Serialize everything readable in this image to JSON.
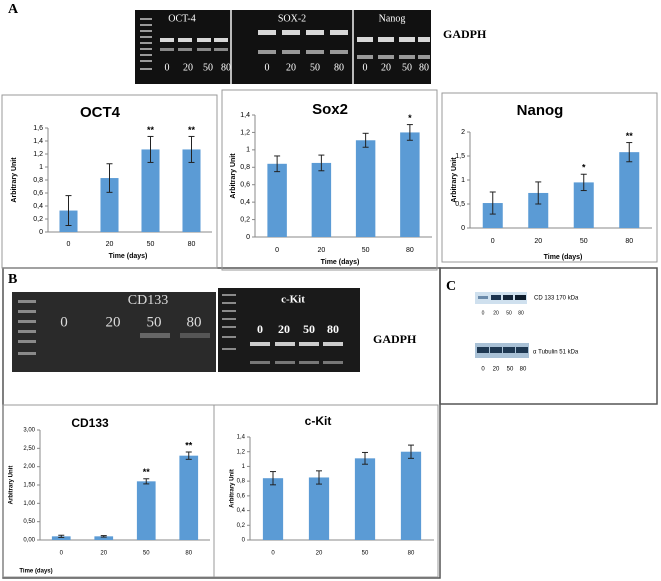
{
  "panels": {
    "a": "A",
    "b": "B",
    "c": "C"
  },
  "gel_a": {
    "labels": [
      "OCT-4",
      "SOX-2",
      "Nanog"
    ],
    "control": "GADPH",
    "lanes": [
      "0",
      "20",
      "50",
      "80",
      "0",
      "20",
      "50",
      "80",
      "0",
      "20",
      "50",
      "80"
    ]
  },
  "gel_b": {
    "labels": [
      "CD133",
      "c-Kit"
    ],
    "control": "GADPH",
    "lanes": [
      "0",
      "20",
      "50",
      "80",
      "0",
      "20",
      "50",
      "80"
    ]
  },
  "western": {
    "bands": [
      "CD 133 170 kDa",
      "α Tubulin 51 kDa"
    ],
    "lanes": [
      "0",
      "20",
      "50",
      "80",
      "0",
      "20",
      "50",
      "80"
    ]
  },
  "chart_data": [
    {
      "type": "bar",
      "title": "OCT4",
      "y_label": "Arbitrary Unit",
      "x_label": "Time (days)",
      "color": "#5b9bd5",
      "categories": [
        "0",
        "20",
        "50",
        "80"
      ],
      "values": [
        0.33,
        0.83,
        1.27,
        1.27
      ],
      "errors": [
        0.23,
        0.22,
        0.2,
        0.2
      ],
      "annotations": [
        {
          "x": "50",
          "text": "**"
        },
        {
          "x": "80",
          "text": "**"
        }
      ],
      "ylim": [
        0,
        1.6
      ],
      "grid": false,
      "yticks": [
        0,
        {
          "value": 0.2,
          "label": "0,2"
        },
        {
          "value": 0.4,
          "label": "0,4"
        },
        {
          "value": 0.6,
          "label": "0,6"
        },
        {
          "value": 0.8,
          "label": "0,8"
        },
        1,
        {
          "value": 1.2,
          "label": "1,2"
        },
        {
          "value": 1.4,
          "label": "1,4"
        },
        {
          "value": 1.6,
          "label": "1,6"
        }
      ]
    },
    {
      "type": "bar",
      "title": "Sox2",
      "y_label": "Arbitrary Unit",
      "x_label": "Time (days)",
      "color": "#5b9bd5",
      "categories": [
        "0",
        "20",
        "50",
        "80"
      ],
      "values": [
        0.84,
        0.85,
        1.11,
        1.2
      ],
      "errors": [
        0.09,
        0.09,
        0.08,
        0.09
      ],
      "annotations": [
        {
          "x": "80",
          "text": "*"
        }
      ],
      "ylim": [
        0,
        1.4
      ],
      "grid": false,
      "yticks": [
        0,
        {
          "value": 0.2,
          "label": "0,2"
        },
        {
          "value": 0.4,
          "label": "0,4"
        },
        {
          "value": 0.6,
          "label": "0,6"
        },
        {
          "value": 0.8,
          "label": "0,8"
        },
        1,
        {
          "value": 1.2,
          "label": "1,2"
        },
        {
          "value": 1.4,
          "label": "1,4"
        }
      ]
    },
    {
      "type": "bar",
      "title": "Nanog",
      "y_label": "Arbitrary Unit",
      "x_label": "Time (days)",
      "color": "#5b9bd5",
      "categories": [
        "0",
        "20",
        "50",
        "80"
      ],
      "values": [
        0.52,
        0.73,
        0.95,
        1.58
      ],
      "errors": [
        0.23,
        0.23,
        0.17,
        0.2
      ],
      "annotations": [
        {
          "x": "50",
          "text": "*"
        },
        {
          "x": "80",
          "text": "**"
        }
      ],
      "ylim": [
        0,
        2
      ],
      "grid": false,
      "yticks": [
        0,
        {
          "value": 0.5,
          "label": "0,5"
        },
        1,
        {
          "value": 1.5,
          "label": "1,5"
        },
        2
      ]
    },
    {
      "type": "bar",
      "title": "CD133",
      "y_label": "Arbitrary Unit",
      "x_label": "Time (days)",
      "color": "#5b9bd5",
      "categories": [
        "0",
        "20",
        "50",
        "80"
      ],
      "values": [
        0.1,
        0.1,
        1.6,
        2.3
      ],
      "errors": [
        0.03,
        0.02,
        0.07,
        0.1
      ],
      "annotations": [
        {
          "x": "50",
          "text": "**"
        },
        {
          "x": "80",
          "text": "**"
        }
      ],
      "ylim": [
        0,
        3
      ],
      "grid": false,
      "yticks": [
        {
          "value": 0,
          "label": "0,00"
        },
        {
          "value": 0.5,
          "label": "0,50"
        },
        {
          "value": 1,
          "label": "1,00"
        },
        {
          "value": 1.5,
          "label": "1,50"
        },
        {
          "value": 2,
          "label": "2,00"
        },
        {
          "value": 2.5,
          "label": "2,50"
        },
        {
          "value": 3,
          "label": "3,00"
        }
      ]
    },
    {
      "type": "bar",
      "title": "c-Kit",
      "y_label": "Arbitrary Unit",
      "color": "#5b9bd5",
      "categories": [
        "0",
        "20",
        "50",
        "80"
      ],
      "values": [
        0.84,
        0.85,
        1.11,
        1.2
      ],
      "errors": [
        0.09,
        0.09,
        0.08,
        0.09
      ],
      "ylim": [
        0,
        1.4
      ],
      "grid": false,
      "yticks": [
        0,
        {
          "value": 0.2,
          "label": "0,2"
        },
        {
          "value": 0.4,
          "label": "0,4"
        },
        {
          "value": 0.6,
          "label": "0,6"
        },
        {
          "value": 0.8,
          "label": "0,8"
        },
        1,
        {
          "value": 1.2,
          "label": "1,2"
        },
        {
          "value": 1.4,
          "label": "1,4"
        }
      ]
    }
  ]
}
